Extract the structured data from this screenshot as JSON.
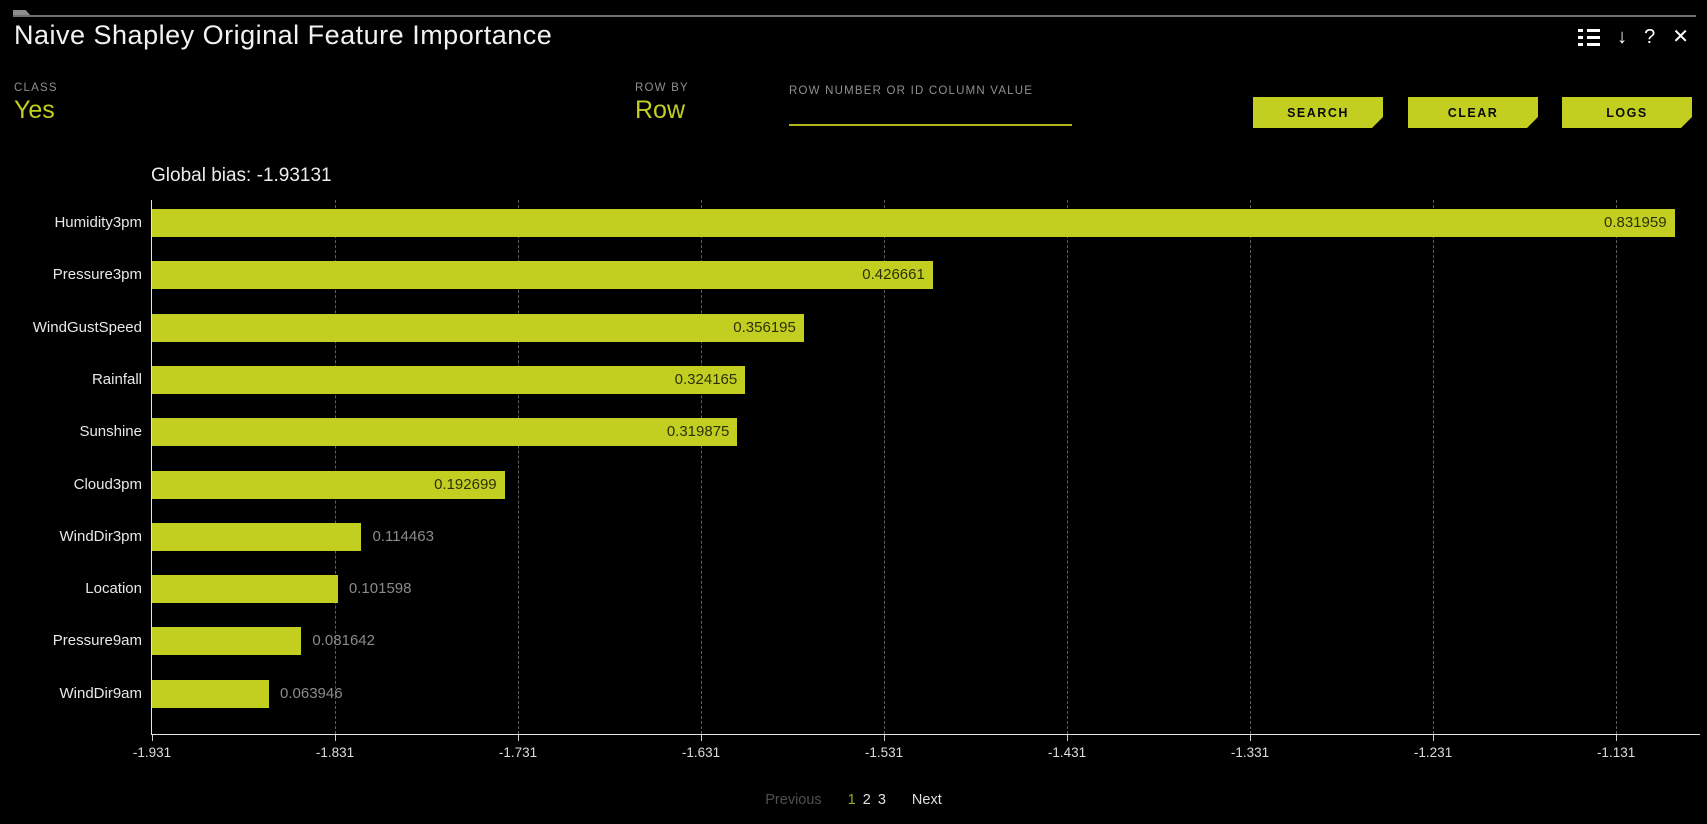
{
  "window": {
    "title": "Naive Shapley Original Feature Importance",
    "download_icon": "↓",
    "help_icon": "?",
    "close_icon": "✕"
  },
  "controls": {
    "class_label": "CLASS",
    "class_value": "Yes",
    "row_by_label": "ROW BY",
    "row_by_value": "Row",
    "row_input_label": "ROW NUMBER OR ID COLUMN VALUE",
    "row_input_value": "",
    "search_label": "SEARCH",
    "clear_label": "CLEAR",
    "logs_label": "LOGS"
  },
  "chart_data": {
    "type": "bar",
    "orientation": "horizontal",
    "title": "Global bias: -1.93131",
    "global_bias": -1.93131,
    "categories": [
      "Humidity3pm",
      "Pressure3pm",
      "WindGustSpeed",
      "Rainfall",
      "Sunshine",
      "Cloud3pm",
      "WindDir3pm",
      "Location",
      "Pressure9am",
      "WindDir9am"
    ],
    "values": [
      0.831959,
      0.426661,
      0.356195,
      0.324165,
      0.319875,
      0.192699,
      0.114463,
      0.101598,
      0.081642,
      0.063946
    ],
    "value_labels": [
      "0.831959",
      "0.426661",
      "0.356195",
      "0.324165",
      "0.319875",
      "0.192699",
      "0.114463",
      "0.101598",
      "0.081642",
      "0.063946"
    ],
    "x_tick_labels": [
      "-1.931",
      "-1.831",
      "-1.731",
      "-1.631",
      "-1.531",
      "-1.431",
      "-1.331",
      "-1.231",
      "-1.131"
    ],
    "x_tick_values": [
      -1.931,
      -1.831,
      -1.731,
      -1.631,
      -1.531,
      -1.431,
      -1.331,
      -1.231,
      -1.131
    ],
    "axis_min": -1.931,
    "axis_max": -1.0846,
    "bar_color": "#c2cf21",
    "grid": "dashed-vertical",
    "legend": "none"
  },
  "pagination": {
    "previous_label": "Previous",
    "pages": [
      "1",
      "2",
      "3"
    ],
    "active_page": "1",
    "next_label": "Next"
  },
  "colors": {
    "accent": "#c2cf21",
    "background": "#000000",
    "text_primary": "#f2f2f2",
    "text_muted": "#8f8f8f"
  }
}
